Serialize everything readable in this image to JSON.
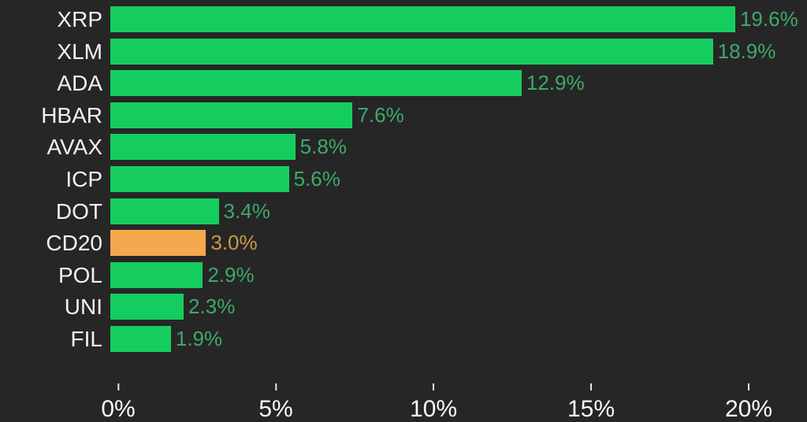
{
  "chart_data": {
    "type": "bar",
    "orientation": "horizontal",
    "title": "",
    "xlabel": "",
    "ylabel": "",
    "categories": [
      "XRP",
      "XLM",
      "ADA",
      "HBAR",
      "AVAX",
      "ICP",
      "DOT",
      "CD20",
      "POL",
      "UNI",
      "FIL"
    ],
    "values": [
      19.6,
      18.9,
      12.9,
      7.6,
      5.8,
      5.6,
      3.4,
      3.0,
      2.9,
      2.3,
      1.9
    ],
    "value_labels": [
      "19.6%",
      "18.9%",
      "12.9%",
      "7.6%",
      "5.8%",
      "5.6%",
      "3.4%",
      "3.0%",
      "2.9%",
      "2.3%",
      "1.9%"
    ],
    "highlight_category": "CD20",
    "x_ticks": [
      {
        "value": 0,
        "label": "0%"
      },
      {
        "value": 5,
        "label": "5%"
      },
      {
        "value": 10,
        "label": "10%"
      },
      {
        "value": 15,
        "label": "15%"
      },
      {
        "value": 20,
        "label": "20%"
      }
    ],
    "xlim": [
      0,
      21.85
    ],
    "grid": false,
    "legend": false,
    "colors": {
      "background": "#262626",
      "bar_green": "#15CD5F",
      "bar_orange": "#F5A84D",
      "value_label_green": "#3FA96A",
      "value_label_orange": "#C8994A",
      "category_label": "#F2F2F2",
      "axis_label": "#FAFAFA",
      "tick_mark": "#E6E6E6"
    }
  }
}
